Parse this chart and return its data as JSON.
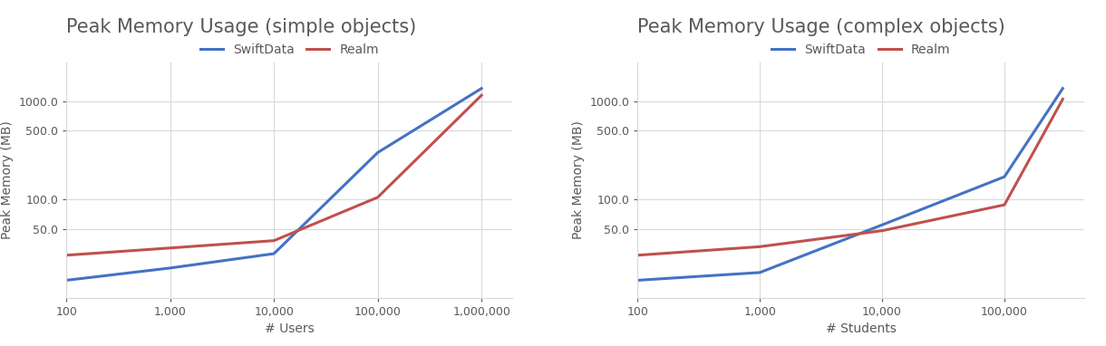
{
  "left": {
    "title": "Peak Memory Usage (simple objects)",
    "xlabel": "# Users",
    "ylabel": "Peak Memory (MB)",
    "x": [
      100,
      1000,
      10000,
      100000,
      1000000
    ],
    "swiftdata": [
      15,
      20,
      28,
      300,
      1350
    ],
    "realm": [
      27,
      32,
      38,
      105,
      1150
    ],
    "xlim_log": [
      2,
      6.3
    ],
    "ylim": [
      10,
      2500
    ],
    "xticks": [
      100,
      1000,
      10000,
      100000,
      1000000
    ],
    "xticklabels": [
      "100",
      "1,000",
      "10,000",
      "100,000",
      "1,000,000"
    ],
    "yticks": [
      50,
      100,
      500,
      1000
    ],
    "yticklabels": [
      "50.0",
      "100.0",
      "500.0",
      "1000.0"
    ]
  },
  "right": {
    "title": "Peak Memory Usage (complex objects)",
    "xlabel": "# Students",
    "ylabel": "Peak Memory (MB)",
    "x": [
      100,
      1000,
      10000,
      100000,
      300000
    ],
    "swiftdata": [
      15,
      18,
      55,
      170,
      1350
    ],
    "realm": [
      27,
      33,
      48,
      88,
      1050
    ],
    "xlim_log": [
      2,
      5.65
    ],
    "ylim": [
      10,
      2500
    ],
    "xticks": [
      100,
      1000,
      10000,
      100000
    ],
    "xticklabels": [
      "100",
      "1,000",
      "10,000",
      "100,000"
    ],
    "yticks": [
      50,
      100,
      500,
      1000
    ],
    "yticklabels": [
      "50.0",
      "100.0",
      "500.0",
      "1000.0"
    ]
  },
  "swiftdata_color": "#4472c4",
  "realm_color": "#c0504d",
  "background_color": "#ffffff",
  "plot_bg_color": "#ffffff",
  "grid_color": "#d9d9d9",
  "title_color": "#595959",
  "axis_color": "#595959",
  "tick_color": "#595959",
  "line_width": 2.2,
  "title_fontsize": 15,
  "label_fontsize": 10,
  "tick_fontsize": 9,
  "legend_fontsize": 10
}
